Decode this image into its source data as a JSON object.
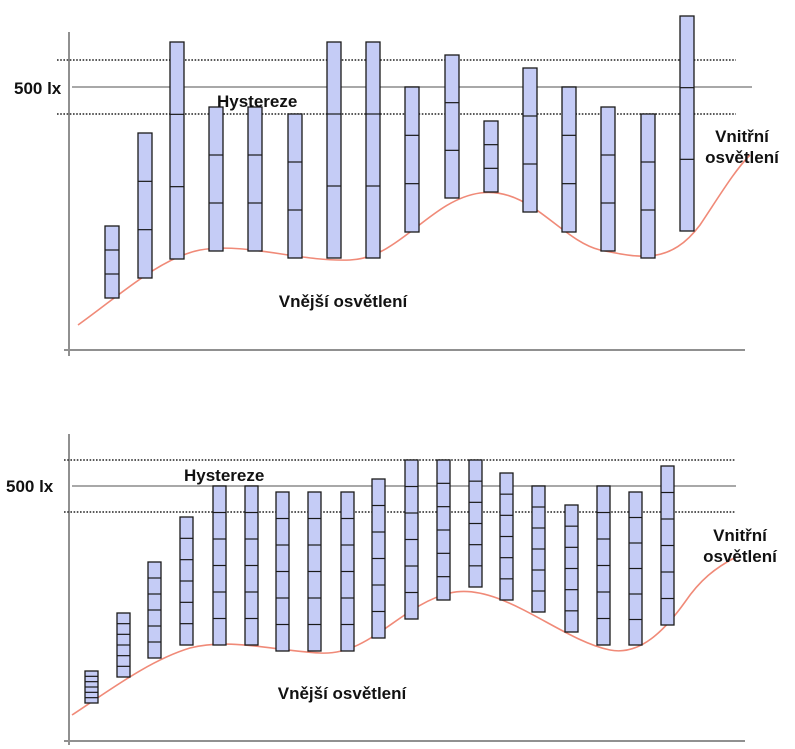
{
  "colors": {
    "bar_fill": "#c5ccf6",
    "bar_stroke": "#1a1a1a",
    "curve": "#f08a78",
    "axis": "#909090",
    "level_line": "#8c8c8c",
    "dotted_line": "#222222",
    "text": "#111111"
  },
  "panels": [
    {
      "level_label": "500 lx",
      "hysteresis_label": "Hystereze",
      "inner_label_line1": "Vnitřní",
      "inner_label_line2": "osvětlení",
      "outer_label": "Vnější osvětlení",
      "segments_per_bar": 3
    },
    {
      "level_label": "500 lx",
      "hysteresis_label": "Hystereze",
      "inner_label_line1": "Vnitřní",
      "inner_label_line2": "osvětlení",
      "outer_label": "Vnější osvětlení",
      "segments_per_bar": 6
    }
  ]
}
